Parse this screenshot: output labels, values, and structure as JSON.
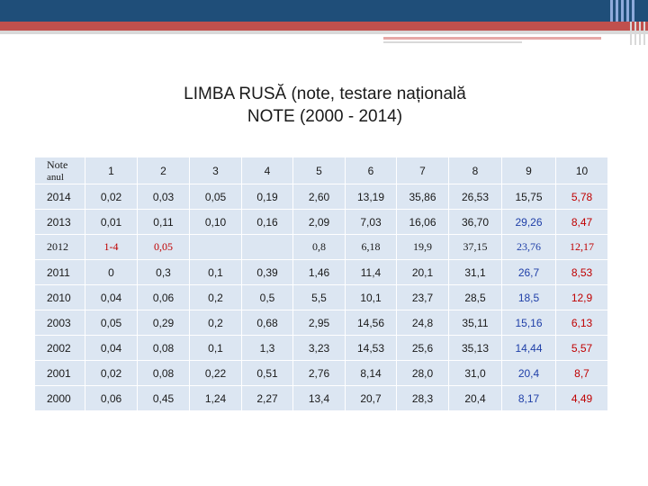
{
  "title": {
    "line1": "LIMBA RUSĂ (note, testare națională",
    "line2": "NOTE (2000 - 2014)"
  },
  "table": {
    "corner": {
      "line1": "Note",
      "line2": "anul"
    },
    "grade_headers": [
      "1",
      "2",
      "3",
      "4",
      "5",
      "6",
      "7",
      "8",
      "9",
      "10"
    ],
    "rows": [
      {
        "year": "2014",
        "cells": [
          "0,02",
          "0,03",
          "0,05",
          "0,19",
          "2,60",
          "13,19",
          "35,86",
          "26,53",
          "15,75",
          "5,78"
        ]
      },
      {
        "year": "2013",
        "cells": [
          "0,01",
          "0,11",
          "0,10",
          "0,16",
          "2,09",
          "7,03",
          "16,06",
          "36,70",
          "29,26",
          "8,47"
        ]
      },
      {
        "year": "2012",
        "cells": [
          "1-4",
          "0,05",
          "",
          "",
          "0,8",
          "6,18",
          "19,9",
          "37,15",
          "23,76",
          "12,17"
        ]
      },
      {
        "year": "2011",
        "cells": [
          "0",
          "0,3",
          "0,1",
          "0,39",
          "1,46",
          "11,4",
          "20,1",
          "31,1",
          "26,7",
          "8,53"
        ]
      },
      {
        "year": "2010",
        "cells": [
          "0,04",
          "0,06",
          "0,2",
          "0,5",
          "5,5",
          "10,1",
          "23,7",
          "28,5",
          "18,5",
          "12,9"
        ]
      },
      {
        "year": "2003",
        "cells": [
          "0,05",
          "0,29",
          "0,2",
          "0,68",
          "2,95",
          "14,56",
          "24,8",
          "35,11",
          "15,16",
          "6,13"
        ]
      },
      {
        "year": "2002",
        "cells": [
          "0,04",
          "0,08",
          "0,1",
          "1,3",
          "3,23",
          "14,53",
          "25,6",
          "35,13",
          "14,44",
          "5,57"
        ]
      },
      {
        "year": "2001",
        "cells": [
          "0,02",
          "0,08",
          "0,22",
          "0,51",
          "2,76",
          "8,14",
          "28,0",
          "31,0",
          "20,4",
          "8,7"
        ]
      },
      {
        "year": "2000",
        "cells": [
          "0,06",
          "0,45",
          "1,24",
          "2,27",
          "13,4",
          "20,7",
          "28,3",
          "20,4",
          "8,17",
          "4,49"
        ]
      }
    ]
  },
  "colors": {
    "header_band": "#1f4e79",
    "accent_red": "#c0504d",
    "cell_fill": "#dce6f2",
    "value_red": "#c00000",
    "value_blue": "#1f3fa8"
  }
}
